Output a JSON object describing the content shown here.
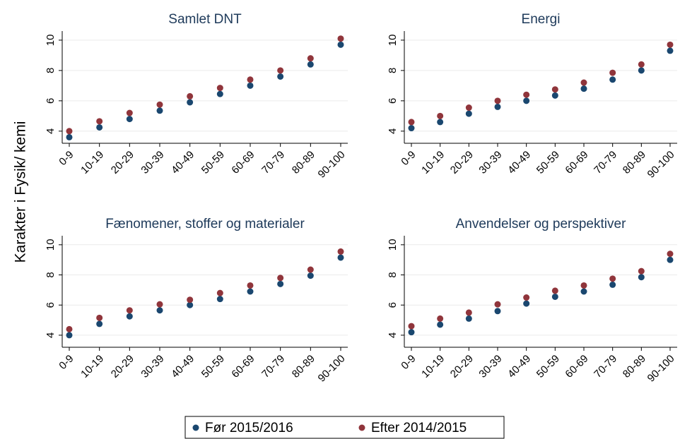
{
  "chart_data": [
    {
      "type": "scatter",
      "title": "Samlet DNT",
      "ylabel": "Karakter i Fysik/ kemi",
      "categories": [
        "0-9",
        "10-19",
        "20-29",
        "30-39",
        "40-49",
        "50-59",
        "60-69",
        "70-79",
        "80-89",
        "90-100"
      ],
      "series": [
        {
          "name": "Før 2015/2016",
          "color": "#1a476f",
          "values": [
            3.6,
            4.25,
            4.8,
            5.35,
            5.9,
            6.45,
            7.0,
            7.6,
            8.4,
            9.7
          ]
        },
        {
          "name": "Efter 2014/2015",
          "color": "#90353b",
          "values": [
            4.0,
            4.65,
            5.2,
            5.75,
            6.3,
            6.85,
            7.4,
            8.0,
            8.8,
            10.1
          ]
        }
      ],
      "ylim": [
        3.2,
        10.6
      ],
      "yticks": [
        4,
        6,
        8,
        10
      ],
      "grid": true
    },
    {
      "type": "scatter",
      "title": "Energi",
      "categories": [
        "0-9",
        "10-19",
        "20-29",
        "30-39",
        "40-49",
        "50-59",
        "60-69",
        "70-79",
        "80-89",
        "90-100"
      ],
      "series": [
        {
          "name": "Før 2015/2016",
          "color": "#1a476f",
          "values": [
            4.2,
            4.6,
            5.15,
            5.6,
            6.0,
            6.35,
            6.8,
            7.4,
            8.0,
            9.3
          ]
        },
        {
          "name": "Efter 2014/2015",
          "color": "#90353b",
          "values": [
            4.6,
            5.0,
            5.55,
            6.0,
            6.4,
            6.75,
            7.2,
            7.85,
            8.4,
            9.7
          ]
        }
      ],
      "ylim": [
        3.2,
        10.6
      ],
      "yticks": [
        4,
        6,
        8,
        10
      ],
      "grid": true
    },
    {
      "type": "scatter",
      "title": "Fænomener, stoffer og materialer",
      "categories": [
        "0-9",
        "10-19",
        "20-29",
        "30-39",
        "40-49",
        "50-59",
        "60-69",
        "70-79",
        "80-89",
        "90-100"
      ],
      "series": [
        {
          "name": "Før 2015/2016",
          "color": "#1a476f",
          "values": [
            4.0,
            4.75,
            5.25,
            5.65,
            6.0,
            6.4,
            6.9,
            7.4,
            7.95,
            9.15
          ]
        },
        {
          "name": "Efter 2014/2015",
          "color": "#90353b",
          "values": [
            4.4,
            5.15,
            5.65,
            6.05,
            6.35,
            6.8,
            7.3,
            7.8,
            8.35,
            9.55
          ]
        }
      ],
      "ylim": [
        3.2,
        10.6
      ],
      "yticks": [
        4,
        6,
        8,
        10
      ],
      "grid": true
    },
    {
      "type": "scatter",
      "title": "Anvendelser og perspektiver",
      "categories": [
        "0-9",
        "10-19",
        "20-29",
        "30-39",
        "40-49",
        "50-59",
        "60-69",
        "70-79",
        "80-89",
        "90-100"
      ],
      "series": [
        {
          "name": "Før 2015/2016",
          "color": "#1a476f",
          "values": [
            4.2,
            4.7,
            5.1,
            5.6,
            6.1,
            6.55,
            6.9,
            7.35,
            7.85,
            9.0
          ]
        },
        {
          "name": "Efter 2014/2015",
          "color": "#90353b",
          "values": [
            4.6,
            5.1,
            5.5,
            6.05,
            6.5,
            6.95,
            7.3,
            7.75,
            8.25,
            9.4
          ]
        }
      ],
      "ylim": [
        3.2,
        10.6
      ],
      "yticks": [
        4,
        6,
        8,
        10
      ],
      "grid": true
    }
  ]
}
